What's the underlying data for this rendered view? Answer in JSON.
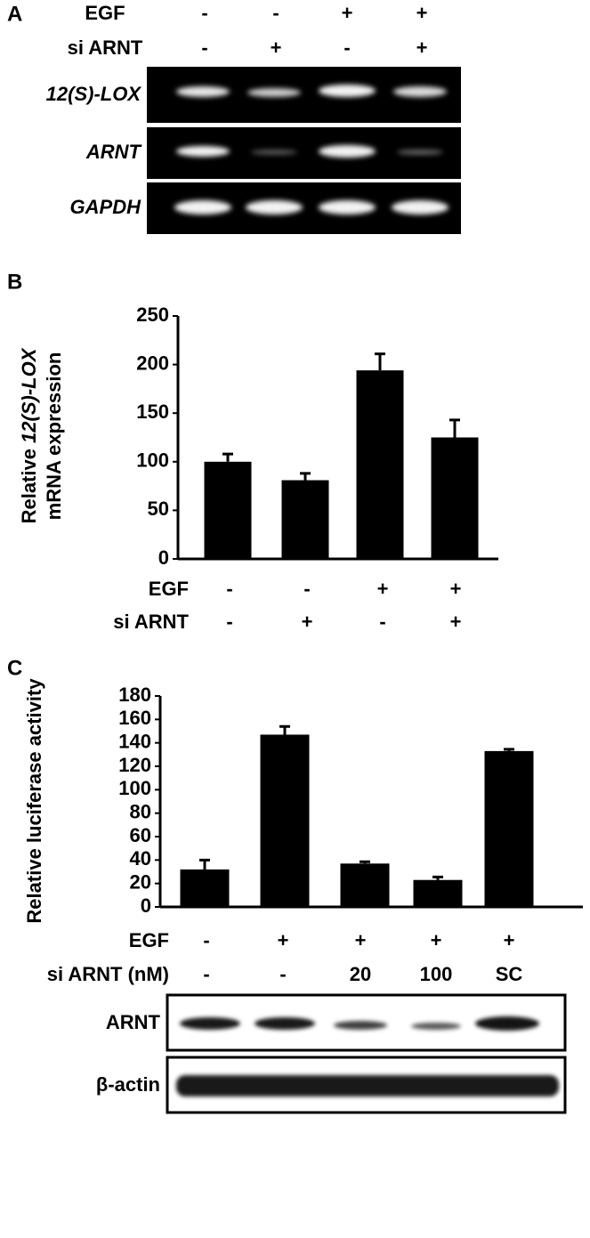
{
  "panel_a": {
    "label": "A",
    "treatments": [
      {
        "name": "EGF",
        "signs": [
          "-",
          "-",
          "+",
          "+"
        ]
      },
      {
        "name": "si ARNT",
        "signs": [
          "-",
          "+",
          "-",
          "+"
        ]
      }
    ],
    "gel_rows": [
      "12(S)-LOX",
      "ARNT",
      "GAPDH"
    ]
  },
  "chart_data": [
    {
      "type": "bar",
      "panel": "B",
      "ylabel": [
        "Relative ",
        "12(S)-LOX",
        "mRNA expression"
      ],
      "categories": [
        null,
        null,
        null,
        null
      ],
      "values": [
        100,
        81,
        194,
        125
      ],
      "errors": [
        8,
        7,
        17,
        18
      ],
      "color": "#000000",
      "ylim": [
        0,
        250
      ],
      "yticks": [
        0,
        50,
        100,
        150,
        200,
        250
      ],
      "grid": false,
      "treatments": [
        {
          "name": "EGF",
          "signs": [
            "-",
            "-",
            "+",
            "+"
          ]
        },
        {
          "name": "si ARNT",
          "signs": [
            "-",
            "+",
            "-",
            "+"
          ]
        }
      ]
    },
    {
      "type": "bar",
      "panel": "C",
      "ylabel": [
        "Relative luciferase activity"
      ],
      "categories": [
        null,
        null,
        null,
        null,
        null
      ],
      "values": [
        32,
        147,
        37,
        23,
        133
      ],
      "errors": [
        8,
        7,
        1.5,
        2.5,
        1.5
      ],
      "color": "#000000",
      "ylim": [
        0,
        180
      ],
      "yticks": [
        0,
        20,
        40,
        60,
        80,
        100,
        120,
        140,
        160,
        180
      ],
      "grid": false,
      "treatments": [
        {
          "name": "EGF",
          "signs": [
            "-",
            "+",
            "+",
            "+",
            "+"
          ]
        },
        {
          "name": "si ARNT (nM)",
          "signs": [
            "-",
            "-",
            "20",
            "100",
            "SC"
          ]
        }
      ],
      "blot_rows": [
        "ARNT",
        "β-actin"
      ]
    }
  ]
}
